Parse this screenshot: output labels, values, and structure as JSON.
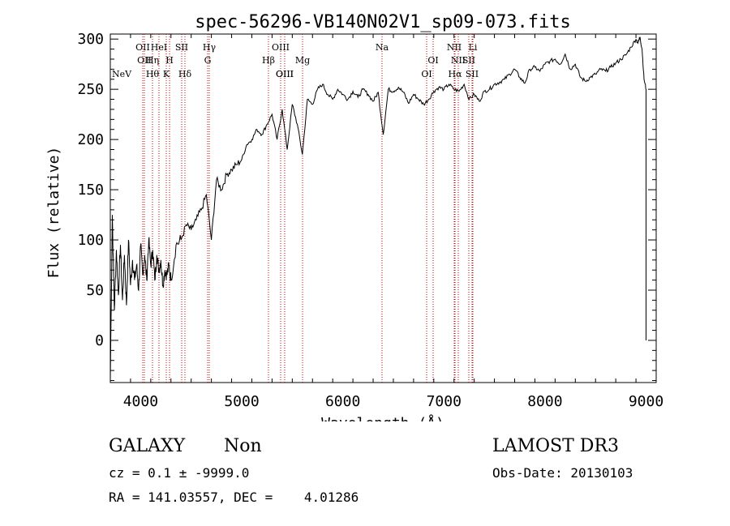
{
  "colors": {
    "spectrum": "#000000",
    "line_marker": "#cc0000",
    "axis": "#000000"
  },
  "chart_data": {
    "type": "line",
    "title": "spec-56296-VB140N02V1_sp09-073.fits",
    "xlabel": "Wavelength (Å)",
    "ylabel": "Flux (relative)",
    "xlim": [
      3700,
      9100
    ],
    "ylim": [
      -42,
      305
    ],
    "xticks": [
      4000,
      5000,
      6000,
      7000,
      8000,
      9000
    ],
    "yticks": [
      0,
      50,
      100,
      150,
      200,
      250,
      300
    ],
    "series": [
      {
        "name": "spectrum",
        "x": [
          3700,
          3720,
          3740,
          3760,
          3780,
          3800,
          3820,
          3840,
          3860,
          3880,
          3900,
          3920,
          3940,
          3960,
          3980,
          4000,
          4020,
          4040,
          4060,
          4080,
          4100,
          4120,
          4140,
          4160,
          4180,
          4200,
          4220,
          4240,
          4260,
          4280,
          4300,
          4350,
          4400,
          4450,
          4500,
          4550,
          4600,
          4650,
          4700,
          4750,
          4800,
          4850,
          4900,
          4950,
          5000,
          5050,
          5100,
          5150,
          5200,
          5250,
          5300,
          5350,
          5400,
          5450,
          5500,
          5550,
          5600,
          5650,
          5700,
          5750,
          5800,
          5850,
          5900,
          5950,
          6000,
          6050,
          6100,
          6150,
          6200,
          6250,
          6300,
          6350,
          6400,
          6450,
          6500,
          6550,
          6600,
          6650,
          6700,
          6750,
          6800,
          6850,
          6900,
          6950,
          7000,
          7050,
          7100,
          7150,
          7200,
          7250,
          7300,
          7350,
          7400,
          7450,
          7500,
          7550,
          7600,
          7650,
          7700,
          7750,
          7800,
          7850,
          7900,
          7950,
          8000,
          8050,
          8100,
          8150,
          8200,
          8250,
          8300,
          8350,
          8400,
          8450,
          8500,
          8550,
          8600,
          8650,
          8700,
          8750,
          8800,
          8850,
          8900,
          8920,
          8940,
          8960,
          8980,
          9000
        ],
        "y": [
          -40,
          125,
          30,
          90,
          45,
          95,
          40,
          85,
          35,
          100,
          55,
          80,
          60,
          75,
          50,
          95,
          65,
          85,
          60,
          100,
          75,
          90,
          60,
          85,
          70,
          80,
          55,
          70,
          65,
          75,
          60,
          95,
          100,
          115,
          110,
          120,
          130,
          145,
          100,
          160,
          150,
          165,
          170,
          175,
          180,
          195,
          200,
          210,
          205,
          215,
          225,
          200,
          230,
          190,
          235,
          215,
          185,
          240,
          235,
          250,
          255,
          245,
          240,
          250,
          245,
          240,
          248,
          242,
          250,
          245,
          238,
          247,
          205,
          250,
          248,
          252,
          247,
          236,
          245,
          240,
          235,
          240,
          248,
          252,
          250,
          255,
          250,
          248,
          255,
          240,
          245,
          238,
          248,
          250,
          255,
          257,
          260,
          265,
          270,
          262,
          256,
          270,
          272,
          268,
          275,
          278,
          280,
          275,
          285,
          270,
          275,
          262,
          258,
          262,
          265,
          270,
          268,
          272,
          276,
          280,
          284,
          292,
          300,
          296,
          302,
          290,
          260,
          250
        ]
      }
    ],
    "lines": [
      {
        "label": "NeV",
        "wave": 3426,
        "row": 3
      },
      {
        "label": "OII",
        "wave": 3727,
        "row": 1
      },
      {
        "label": "OII",
        "wave": 3729,
        "row": 2
      },
      {
        "label": "Hθ",
        "wave": 3798,
        "row": 3
      },
      {
        "label": "Hη",
        "wave": 3835,
        "row": 2
      },
      {
        "label": "HeI",
        "wave": 3889,
        "row": 1
      },
      {
        "label": "K",
        "wave": 3934,
        "row": 3
      },
      {
        "label": "H",
        "wave": 3969,
        "row": 2
      },
      {
        "label": "SII",
        "wave": 4072,
        "row": 1
      },
      {
        "label": "Hδ",
        "wave": 4102,
        "row": 3
      },
      {
        "label": "Hγ",
        "wave": 4341,
        "row": 1
      },
      {
        "label": "G",
        "wave": 4304,
        "row": 2
      },
      {
        "label": "OIII",
        "wave": 4363,
        "row": 3
      },
      {
        "label": "OIII",
        "wave": 4959,
        "row": 1
      },
      {
        "label": "Hβ",
        "wave": 4861,
        "row": 2
      },
      {
        "label": "OIII",
        "wave": 5007,
        "row": 3
      },
      {
        "label": "Mg",
        "wave": 5175,
        "row": 2
      },
      {
        "label": "Na",
        "wave": 5894,
        "row": 1
      },
      {
        "label": "OI",
        "wave": 6300,
        "row": 2
      },
      {
        "label": "OI",
        "wave": 6364,
        "row": 3
      },
      {
        "label": "NII",
        "wave": 6548,
        "row": 1
      },
      {
        "label": "Li",
        "wave": 6707,
        "row": 1
      },
      {
        "label": "NII",
        "wave": 6583,
        "row": 2
      },
      {
        "label": "SII",
        "wave": 6716,
        "row": 2
      },
      {
        "label": "Hα",
        "wave": 6563,
        "row": 3
      },
      {
        "label": "SII",
        "wave": 6731,
        "row": 3
      }
    ]
  },
  "info": {
    "object_class": "GALAXY",
    "subclass": "Non",
    "survey": "LAMOST DR3",
    "redshift": "cz = 0.1 ± -9999.0",
    "obs_date": "Obs-Date: 20130103",
    "coords": "RA = 141.03557, DEC =    4.01286"
  }
}
